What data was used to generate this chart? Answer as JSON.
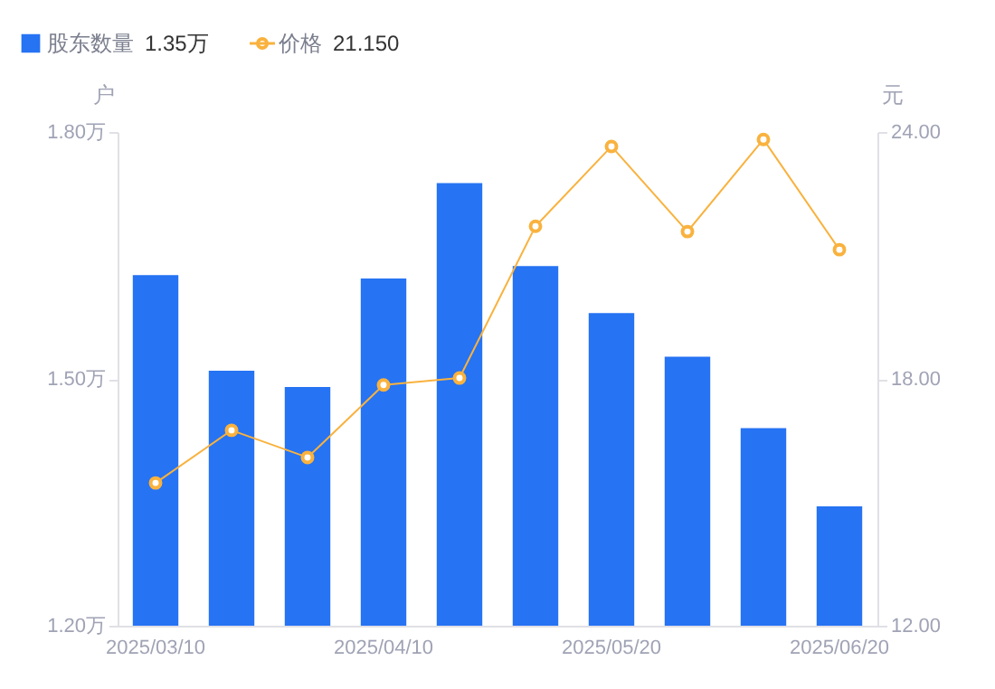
{
  "chart_data": {
    "type": "bar",
    "categories": [
      "2025/03/10",
      null,
      null,
      "2025/04/10",
      null,
      null,
      "2025/05/20",
      null,
      null,
      "2025/06/20"
    ],
    "series": [
      {
        "name": "股东数量",
        "color": "#2673f3",
        "values": [
          1.626,
          1.51,
          1.49,
          1.622,
          1.738,
          1.637,
          1.58,
          1.527,
          1.44,
          1.345
        ]
      },
      {
        "name": "价格",
        "type": "line",
        "axis": "y2",
        "color": "#f9b23e",
        "marker": "circle",
        "values": [
          15.47,
          16.75,
          16.09,
          17.85,
          18.02,
          21.71,
          23.65,
          21.58,
          23.82,
          21.14
        ]
      }
    ],
    "ylabel": "户",
    "y2label": "元",
    "ylim": [
      1.2,
      1.8
    ],
    "yticks": [
      {
        "value": 1.2,
        "label": "1.20万"
      },
      {
        "value": 1.5,
        "label": "1.50万"
      },
      {
        "value": 1.8,
        "label": "1.80万"
      }
    ],
    "y2lim": [
      12,
      24
    ],
    "y2ticks": [
      {
        "value": 12,
        "label": "12.00"
      },
      {
        "value": 18,
        "label": "18.00"
      },
      {
        "value": 24,
        "label": "24.00"
      }
    ],
    "annotations": [
      "1.35万",
      "21.150"
    ],
    "legend": "top left",
    "grid": false
  }
}
